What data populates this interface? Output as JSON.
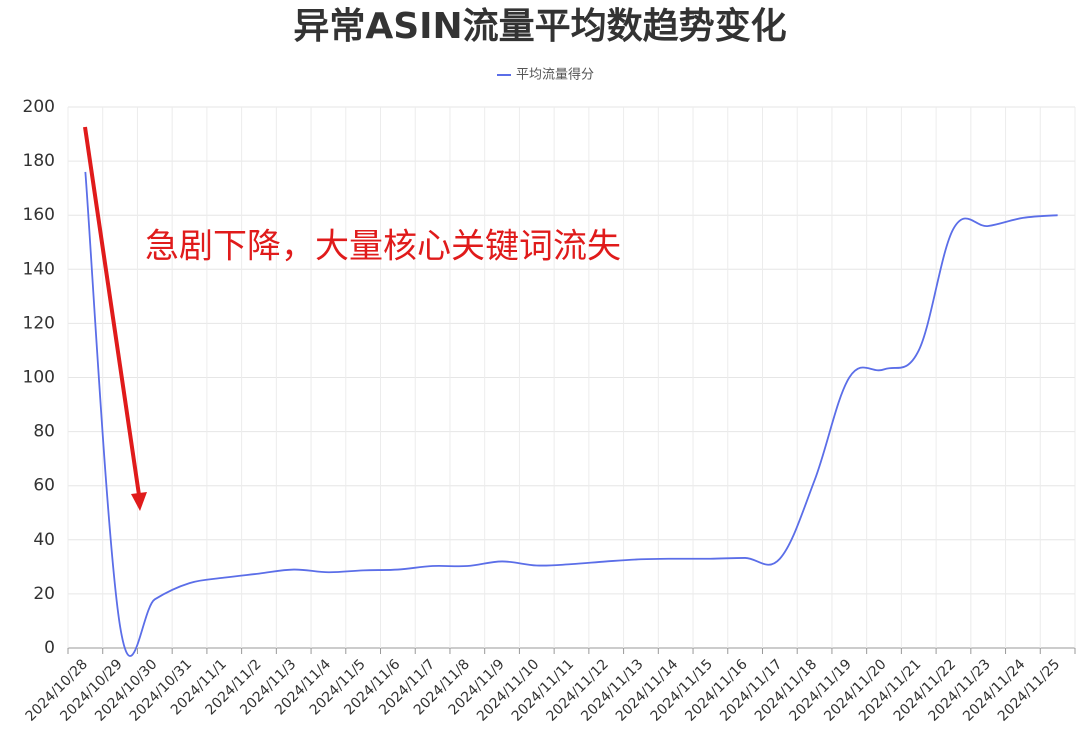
{
  "chart_data": {
    "type": "line",
    "title": "异常ASIN流量平均数趋势变化",
    "annotation": "急剧下降，大量核心关键词流失",
    "categories": [
      "2024/10/28",
      "2024/10/29",
      "2024/10/30",
      "2024/10/31",
      "2024/11/1",
      "2024/11/2",
      "2024/11/3",
      "2024/11/4",
      "2024/11/5",
      "2024/11/6",
      "2024/11/7",
      "2024/11/8",
      "2024/11/9",
      "2024/11/10",
      "2024/11/11",
      "2024/11/12",
      "2024/11/13",
      "2024/11/14",
      "2024/11/15",
      "2024/11/16",
      "2024/11/17",
      "2024/11/18",
      "2024/11/19",
      "2024/11/20",
      "2024/11/21",
      "2024/11/22",
      "2024/11/23",
      "2024/11/24",
      "2024/11/25"
    ],
    "series": [
      {
        "name": "平均流量得分",
        "color": "#5b6ee8",
        "values": [
          176,
          8,
          18,
          24,
          26,
          27.5,
          29,
          28,
          28.7,
          29,
          30.3,
          30.3,
          32,
          30.5,
          31,
          32,
          32.8,
          33,
          33,
          33.3,
          33,
          62,
          100,
          103,
          110,
          155,
          156,
          159,
          160
        ]
      }
    ],
    "ylim": [
      0,
      200
    ],
    "yticks": [
      0,
      20,
      40,
      60,
      80,
      100,
      120,
      140,
      160,
      180,
      200
    ],
    "grid": true
  }
}
